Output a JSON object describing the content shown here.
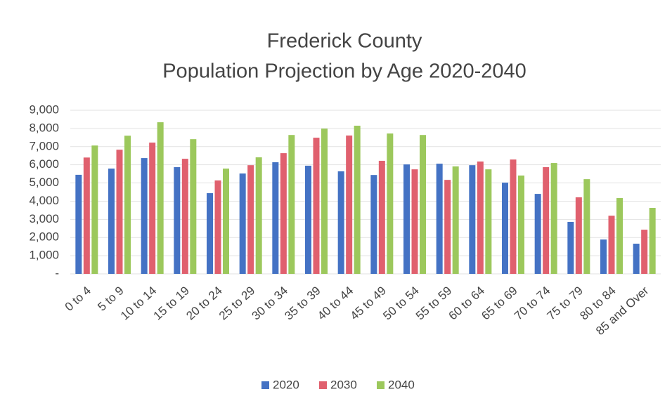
{
  "chart_data": {
    "type": "bar",
    "title": [
      "Frederick County",
      "Population Projection by Age 2020-2040"
    ],
    "categories": [
      "0 to 4",
      "5 to 9",
      "10 to 14",
      "15 to 19",
      "20 to 24",
      "25 to 29",
      "30 to 34",
      "35 to 39",
      "40 to 44",
      "45 to 49",
      "50 to 54",
      "55 to 59",
      "60 to 64",
      "65 to 69",
      "70 to 74",
      "75 to 79",
      "80 to 84",
      "85 and Over"
    ],
    "series": [
      {
        "name": "2020",
        "color": "#4472c4",
        "values": [
          5450,
          5790,
          6370,
          5870,
          4440,
          5520,
          6140,
          5950,
          5640,
          5440,
          6020,
          6060,
          5980,
          5020,
          4400,
          2860,
          1890,
          1660
        ]
      },
      {
        "name": "2030",
        "color": "#e0606e",
        "values": [
          6400,
          6830,
          7220,
          6330,
          5140,
          5980,
          6640,
          7490,
          7610,
          6220,
          5750,
          5170,
          6180,
          6290,
          5870,
          4210,
          3200,
          2430
        ]
      },
      {
        "name": "2040",
        "color": "#9cc85c",
        "values": [
          7060,
          7600,
          8340,
          7410,
          5790,
          6410,
          7640,
          7990,
          8150,
          7720,
          7640,
          5910,
          5750,
          5410,
          6100,
          5210,
          4170,
          3630
        ]
      }
    ],
    "ylim": [
      0,
      9000
    ],
    "yticks": [
      {
        "value": 0,
        "label": "-"
      },
      {
        "value": 1000,
        "label": "1,000"
      },
      {
        "value": 2000,
        "label": "2,000"
      },
      {
        "value": 3000,
        "label": "3,000"
      },
      {
        "value": 4000,
        "label": "4,000"
      },
      {
        "value": 5000,
        "label": "5,000"
      },
      {
        "value": 6000,
        "label": "6,000"
      },
      {
        "value": 7000,
        "label": "7,000"
      },
      {
        "value": 8000,
        "label": "8,000"
      },
      {
        "value": 9000,
        "label": "9,000"
      }
    ],
    "grid": true,
    "legend": "bottom"
  }
}
